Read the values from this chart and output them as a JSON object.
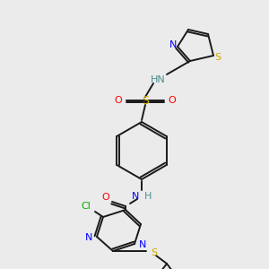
{
  "background_color": "#ebebeb",
  "figsize": [
    3.0,
    3.0
  ],
  "dpi": 100,
  "bond_lw": 1.4,
  "bond_color": "#1a1a1a",
  "colors": {
    "N": "#0000ff",
    "S": "#ccaa00",
    "O": "#ff0000",
    "Cl": "#00aa00",
    "NH": "#4a9090",
    "H": "#4a9090",
    "C": "#1a1a1a"
  }
}
